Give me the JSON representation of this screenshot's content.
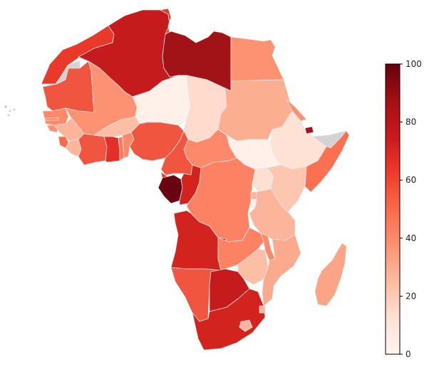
{
  "map": {
    "colorbar": {
      "min": 0,
      "max": 100,
      "ticks": [
        "0",
        "20",
        "40",
        "60",
        "80",
        "100"
      ],
      "colormap": [
        "#fff5f0",
        "#fee0d2",
        "#fcbba1",
        "#fc9272",
        "#fb6a4a",
        "#ef3b2c",
        "#cb181d",
        "#a50f15",
        "#67000d"
      ]
    },
    "nodata_color": "#d3d3d3",
    "border_color": "#e2e2e2"
  }
}
